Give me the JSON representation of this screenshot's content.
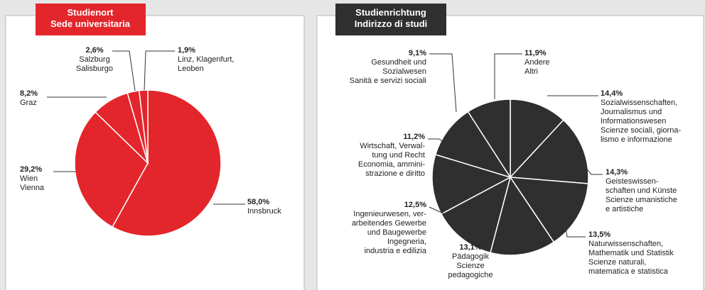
{
  "chart_data": [
    {
      "type": "pie",
      "title": [
        "Studienort",
        "Sede universitaria"
      ],
      "color": "#e3262b",
      "categories": [
        [
          "Innsbruck"
        ],
        [
          "Wien",
          "Vienna"
        ],
        [
          "Graz"
        ],
        [
          "Salzburg",
          "Salisburgo"
        ],
        [
          "Linz, Klagenfurt,",
          "Leoben"
        ]
      ],
      "values": [
        58.0,
        29.2,
        8.2,
        2.6,
        1.9
      ],
      "value_labels": [
        "58,0%",
        "29,2%",
        "8,2%",
        "2,6%",
        "1,9%"
      ]
    },
    {
      "type": "pie",
      "title": [
        "Studienrichtung",
        "Indirizzo di studi"
      ],
      "color": "#2f2f2f",
      "categories": [
        [
          "Andere",
          "Altri"
        ],
        [
          "Sozialwissenschaften,",
          "Journalismus und",
          "Informationswesen",
          "Scienze sociali, giorna-",
          "lismo e informazione"
        ],
        [
          "Geisteswissen-",
          "schaften und Künste",
          "Scienze umanistiche",
          "e artistiche"
        ],
        [
          "Naturwissenschaften,",
          "Mathematik und Statistik",
          "Scienze naturali,",
          "matematica e statistica"
        ],
        [
          "Pädagogik",
          "Scienze",
          "pedagogiche"
        ],
        [
          "Ingenieurwesen, ver-",
          "arbeitendes Gewerbe",
          "und Baugewerbe",
          "Ingegneria,",
          "industria e edilizia"
        ],
        [
          "Wirtschaft, Verwal-",
          "tung und Recht",
          "Economia, ammini-",
          "strazione e diritto"
        ],
        [
          "Gesundheit und",
          "Sozialwesen",
          "Sanità e servizi sociali"
        ]
      ],
      "values": [
        11.9,
        14.4,
        14.3,
        13.5,
        13.1,
        12.5,
        11.2,
        9.1
      ],
      "value_labels": [
        "11,9%",
        "14,4%",
        "14,3%",
        "13,5%",
        "13,1%",
        "12,5%",
        "11,2%",
        "9,1%"
      ]
    }
  ]
}
